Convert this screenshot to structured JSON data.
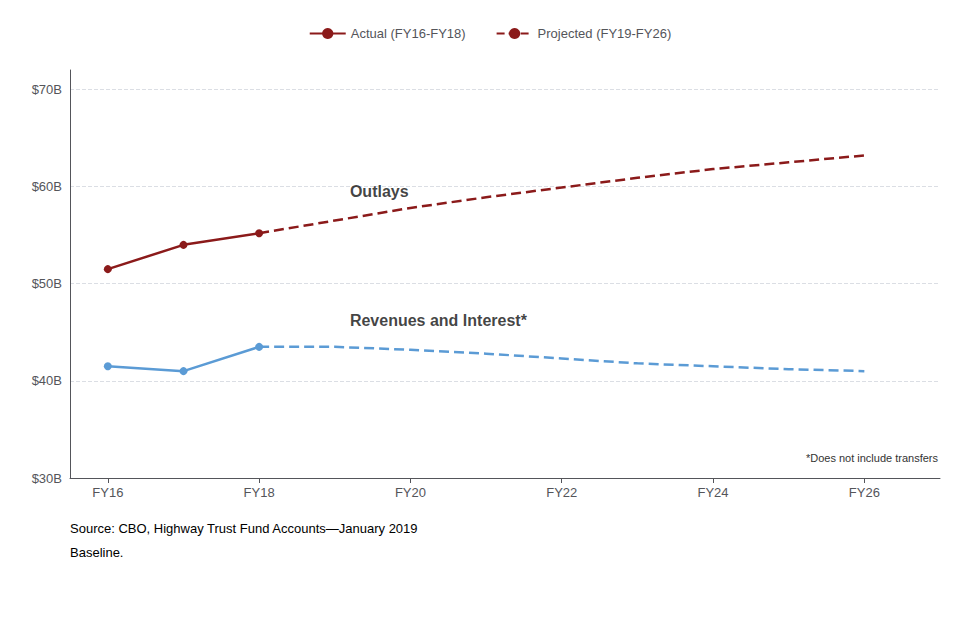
{
  "chart_data": {
    "type": "line",
    "series": [
      {
        "name": "Actual (FY16-FY18)",
        "color": "#8B1A1A",
        "line_style": "solid",
        "marker": "circle",
        "x": [
          2016,
          2017,
          2018
        ],
        "values": [
          51.5,
          54.0,
          55.2
        ]
      },
      {
        "name": "Projected (FY19-FY26)",
        "color": "#8B1A1A",
        "line_style": "dashed",
        "marker": "none",
        "x": [
          2018,
          2019,
          2020,
          2021,
          2022,
          2023,
          2024,
          2025,
          2026
        ],
        "values": [
          55.2,
          56.5,
          57.8,
          58.9,
          59.9,
          60.9,
          61.8,
          62.5,
          63.2
        ]
      },
      {
        "name": "Actual (FY16-FY18)",
        "color": "#5B9BD5",
        "line_style": "solid",
        "marker": "circle",
        "x": [
          2016,
          2017,
          2018
        ],
        "values": [
          41.5,
          41.0,
          43.5
        ]
      },
      {
        "name": "Projected (FY19-FY26)",
        "color": "#5B9BD5",
        "line_style": "dashed",
        "marker": "none",
        "x": [
          2018,
          2019,
          2020,
          2021,
          2022,
          2023,
          2024,
          2025,
          2026
        ],
        "values": [
          43.5,
          43.5,
          43.2,
          42.8,
          42.3,
          41.8,
          41.5,
          41.2,
          41.0
        ]
      }
    ],
    "xlim": [
      2015.5,
      2027.0
    ],
    "xticks": [
      {
        "value": 2016,
        "label": "FY16"
      },
      {
        "value": 2018,
        "label": "FY18"
      },
      {
        "value": 2020,
        "label": "FY20"
      },
      {
        "value": 2022,
        "label": "FY22"
      },
      {
        "value": 2024,
        "label": "FY24"
      },
      {
        "value": 2026,
        "label": "FY26"
      }
    ],
    "ylim": [
      30,
      72
    ],
    "yticks": [
      {
        "value": 30,
        "label": "$30B"
      },
      {
        "value": 40,
        "label": "$40B"
      },
      {
        "value": 50,
        "label": "$50B"
      },
      {
        "value": 60,
        "label": "$60B"
      },
      {
        "value": 70,
        "label": "$70B"
      }
    ],
    "grid": "y",
    "legend": "top",
    "annotations": [
      {
        "text": "Outlays",
        "x": 2019.2,
        "y": 59.5
      },
      {
        "text": "Revenues and Interest*",
        "x": 2019.2,
        "y": 46.2
      }
    ],
    "footnote": "*Does not include transfers",
    "source": [
      "Source: CBO, Highway Trust Fund Accounts—January 2019",
      "Baseline."
    ]
  }
}
